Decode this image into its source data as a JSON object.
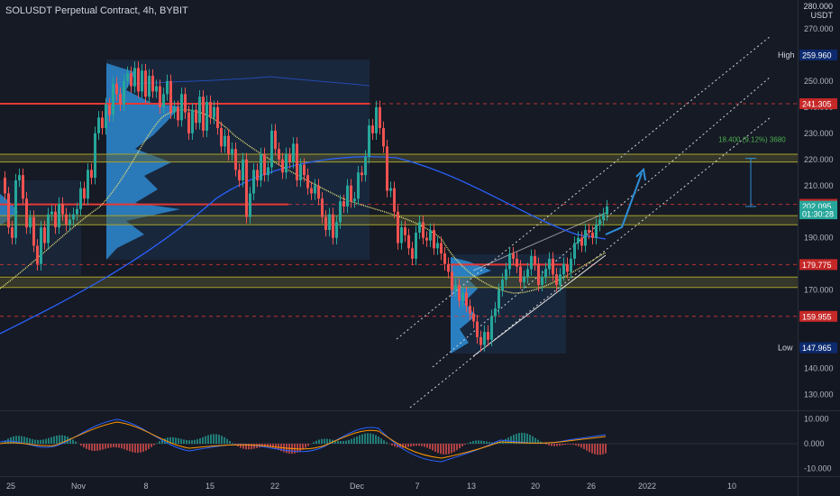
{
  "header": {
    "symbol_title": "SOLUSDT Perpetual Contract, 4h, BYBIT",
    "currency": "USDT",
    "top_price": "280.000"
  },
  "chart_data": [
    {
      "type": "candlestick",
      "title": "SOLUSDT Perpetual Contract, 4h, BYBIT",
      "price_axis": {
        "ticks": [
          "270.000",
          "250.000",
          "240.000",
          "230.000",
          "220.000",
          "210.000",
          "190.000",
          "170.000",
          "140.000",
          "130.000"
        ],
        "range": [
          124,
          281
        ]
      },
      "time_axis": {
        "ticks": [
          "25",
          "Nov",
          "8",
          "15",
          "22",
          "Dec",
          "7",
          "13",
          "20",
          "26",
          "2022",
          "10"
        ]
      },
      "price_labels": [
        {
          "name": "High",
          "value": "259.960",
          "color": "#0d2a6e"
        },
        {
          "name": "",
          "value": "241.305",
          "color": "#c62828"
        },
        {
          "name": "",
          "value": "202.805",
          "color": "#c62828"
        },
        {
          "name": "",
          "value": "202.095",
          "color": "#26a69a"
        },
        {
          "name": "",
          "value": "01:30:28",
          "color": "#26a69a"
        },
        {
          "name": "",
          "value": "179.775",
          "color": "#c62828"
        },
        {
          "name": "",
          "value": "159.955",
          "color": "#c62828"
        },
        {
          "name": "Low",
          "value": "147.965",
          "color": "#0d2a6e"
        }
      ],
      "horizontal_levels": [
        {
          "value": 241.305,
          "color": "#e53935"
        },
        {
          "value": 202.805,
          "color": "#e53935"
        },
        {
          "value": 179.775,
          "color": "#e53935"
        },
        {
          "value": 159.955,
          "color": "#e53935"
        }
      ],
      "zones": [
        {
          "from": 219,
          "to": 222,
          "color": "#a6a32c"
        },
        {
          "from": 195,
          "to": 198.5,
          "color": "#a6a32c"
        },
        {
          "from": 171,
          "to": 175,
          "color": "#a6a32c"
        }
      ],
      "measure": {
        "text": "18.400 (9.12%) 3680",
        "from": 202,
        "to": 220.4
      },
      "close_path": [
        [
          0,
          213
        ],
        [
          4,
          207
        ],
        [
          8,
          194
        ],
        [
          12,
          190
        ],
        [
          16,
          212
        ],
        [
          20,
          214
        ],
        [
          24,
          205
        ],
        [
          28,
          194
        ],
        [
          32,
          198
        ],
        [
          36,
          187
        ],
        [
          40,
          180
        ],
        [
          44,
          194
        ],
        [
          48,
          188
        ],
        [
          52,
          199
        ],
        [
          56,
          200
        ],
        [
          60,
          194
        ],
        [
          64,
          203
        ],
        [
          68,
          199
        ],
        [
          72,
          195
        ],
        [
          76,
          197
        ],
        [
          80,
          199
        ],
        [
          84,
          201
        ],
        [
          88,
          209
        ],
        [
          92,
          205
        ],
        [
          96,
          216
        ],
        [
          100,
          213
        ],
        [
          104,
          230
        ],
        [
          108,
          236
        ],
        [
          112,
          232
        ],
        [
          116,
          241
        ],
        [
          120,
          237
        ],
        [
          124,
          249
        ],
        [
          128,
          245
        ],
        [
          132,
          241
        ],
        [
          136,
          250
        ],
        [
          140,
          253
        ],
        [
          144,
          248
        ],
        [
          148,
          255
        ],
        [
          152,
          246
        ],
        [
          156,
          254
        ],
        [
          160,
          244
        ],
        [
          164,
          252
        ],
        [
          168,
          246
        ],
        [
          172,
          248
        ],
        [
          176,
          240
        ],
        [
          180,
          245
        ],
        [
          184,
          250
        ],
        [
          188,
          238
        ],
        [
          192,
          240
        ],
        [
          196,
          235
        ],
        [
          200,
          245
        ],
        [
          204,
          238
        ],
        [
          208,
          230
        ],
        [
          212,
          239
        ],
        [
          216,
          234
        ],
        [
          220,
          244
        ],
        [
          224,
          231
        ],
        [
          228,
          242
        ],
        [
          232,
          236
        ],
        [
          236,
          240
        ],
        [
          240,
          232
        ],
        [
          244,
          225
        ],
        [
          248,
          229
        ],
        [
          252,
          222
        ],
        [
          256,
          224
        ],
        [
          260,
          216
        ],
        [
          264,
          212
        ],
        [
          268,
          220
        ],
        [
          272,
          198
        ],
        [
          276,
          207
        ],
        [
          280,
          216
        ],
        [
          284,
          212
        ],
        [
          288,
          222
        ],
        [
          292,
          214
        ],
        [
          296,
          217
        ],
        [
          300,
          231
        ],
        [
          304,
          224
        ],
        [
          308,
          220
        ],
        [
          312,
          215
        ],
        [
          316,
          222
        ],
        [
          320,
          219
        ],
        [
          324,
          226
        ],
        [
          328,
          212
        ],
        [
          332,
          218
        ],
        [
          336,
          214
        ],
        [
          340,
          209
        ],
        [
          344,
          207
        ],
        [
          348,
          210
        ],
        [
          352,
          205
        ],
        [
          356,
          198
        ],
        [
          360,
          193
        ],
        [
          364,
          199
        ],
        [
          368,
          190
        ],
        [
          372,
          196
        ],
        [
          376,
          204
        ],
        [
          380,
          202
        ],
        [
          384,
          210
        ],
        [
          388,
          204
        ],
        [
          392,
          205
        ],
        [
          396,
          215
        ],
        [
          400,
          214
        ],
        [
          404,
          221
        ],
        [
          408,
          233
        ],
        [
          412,
          230
        ],
        [
          416,
          240
        ],
        [
          420,
          232
        ],
        [
          424,
          225
        ],
        [
          428,
          208
        ],
        [
          432,
          209
        ],
        [
          436,
          200
        ],
        [
          440,
          188
        ],
        [
          444,
          194
        ],
        [
          448,
          191
        ],
        [
          452,
          186
        ],
        [
          456,
          182
        ],
        [
          460,
          192
        ],
        [
          464,
          196
        ],
        [
          468,
          190
        ],
        [
          472,
          189
        ],
        [
          476,
          193
        ],
        [
          480,
          186
        ],
        [
          484,
          188
        ],
        [
          488,
          184
        ],
        [
          492,
          180
        ],
        [
          496,
          177
        ],
        [
          500,
          170
        ],
        [
          504,
          172
        ],
        [
          508,
          166
        ],
        [
          512,
          169
        ],
        [
          516,
          164
        ],
        [
          520,
          161
        ],
        [
          524,
          158
        ],
        [
          528,
          152
        ],
        [
          532,
          149
        ],
        [
          536,
          154
        ],
        [
          540,
          151
        ],
        [
          544,
          160
        ],
        [
          548,
          163
        ],
        [
          552,
          170
        ],
        [
          556,
          174
        ],
        [
          560,
          178
        ],
        [
          564,
          184
        ],
        [
          568,
          182
        ],
        [
          572,
          179
        ],
        [
          576,
          173
        ],
        [
          580,
          175
        ],
        [
          584,
          178
        ],
        [
          588,
          183
        ],
        [
          592,
          180
        ],
        [
          596,
          172
        ],
        [
          600,
          175
        ],
        [
          604,
          178
        ],
        [
          608,
          182
        ],
        [
          612,
          176
        ],
        [
          616,
          172
        ],
        [
          620,
          176
        ],
        [
          624,
          180
        ],
        [
          628,
          177
        ],
        [
          632,
          182
        ],
        [
          636,
          188
        ],
        [
          640,
          190
        ],
        [
          644,
          187
        ],
        [
          648,
          193
        ],
        [
          652,
          192
        ],
        [
          656,
          190
        ],
        [
          660,
          195
        ],
        [
          664,
          197
        ],
        [
          668,
          199
        ],
        [
          672,
          202
        ]
      ],
      "macd": {
        "ticks": [
          "10.000",
          "0.000",
          "-10.000"
        ],
        "range": [
          -13,
          13
        ]
      }
    }
  ]
}
